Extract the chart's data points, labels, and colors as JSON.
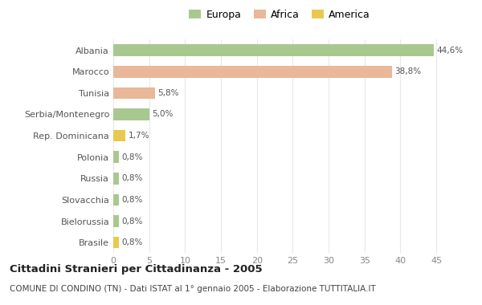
{
  "categories": [
    "Albania",
    "Marocco",
    "Tunisia",
    "Serbia/Montenegro",
    "Rep. Dominicana",
    "Polonia",
    "Russia",
    "Slovacchia",
    "Bielorussia",
    "Brasile"
  ],
  "values": [
    44.6,
    38.8,
    5.8,
    5.0,
    1.7,
    0.8,
    0.8,
    0.8,
    0.8,
    0.8
  ],
  "labels": [
    "44,6%",
    "38,8%",
    "5,8%",
    "5,0%",
    "1,7%",
    "0,8%",
    "0,8%",
    "0,8%",
    "0,8%",
    "0,8%"
  ],
  "colors": [
    "#a8c890",
    "#e8b898",
    "#e8b898",
    "#a8c890",
    "#e8c850",
    "#a8c890",
    "#a8c890",
    "#a8c890",
    "#a8c890",
    "#e8c850"
  ],
  "legend_labels": [
    "Europa",
    "Africa",
    "America"
  ],
  "legend_colors": [
    "#a8c890",
    "#e8b898",
    "#e8c850"
  ],
  "title": "Cittadini Stranieri per Cittadinanza - 2005",
  "subtitle": "COMUNE DI CONDINO (TN) - Dati ISTAT al 1° gennaio 2005 - Elaborazione TUTTITALIA.IT",
  "xlim": [
    0,
    47
  ],
  "xticks": [
    0,
    5,
    10,
    15,
    20,
    25,
    30,
    35,
    40,
    45
  ],
  "background_color": "#ffffff",
  "grid_color": "#e8e8e8",
  "bar_height": 0.55
}
